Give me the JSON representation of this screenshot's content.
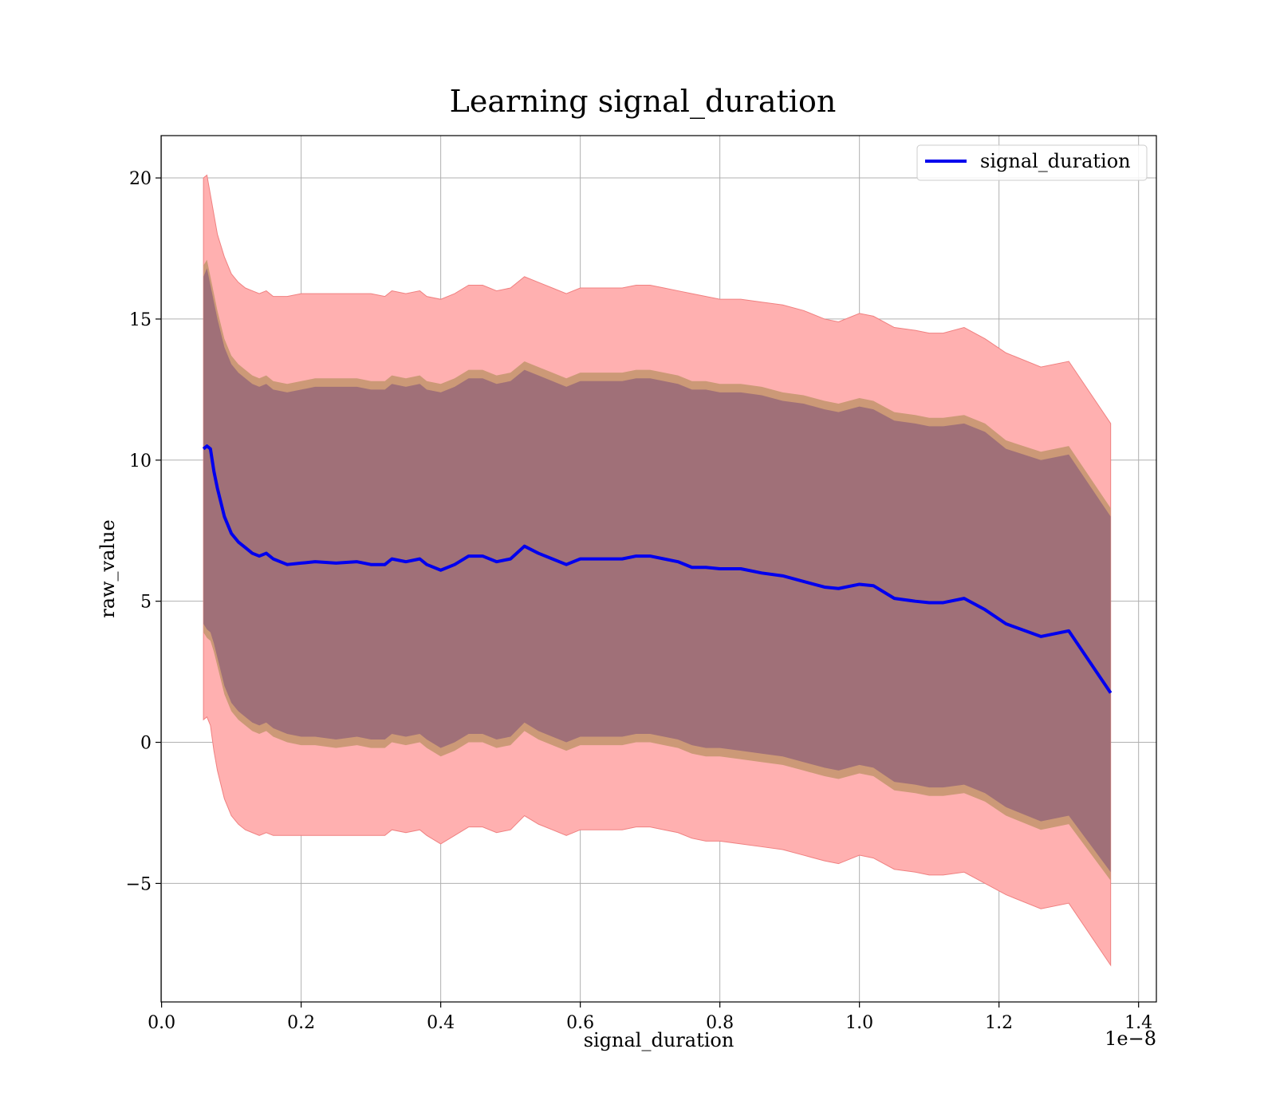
{
  "chart_data": {
    "type": "area",
    "title": "Learning signal_duration",
    "xlabel": "signal_duration",
    "ylabel": "raw_value",
    "x_offset_label": "1e−8",
    "x_scale": 1e-08,
    "xlim": [
      -0.0007,
      1.4255
    ],
    "ylim": [
      -9.2,
      21.5
    ],
    "x_ticks": [
      0.0,
      0.2,
      0.4,
      0.6,
      0.8,
      1.0,
      1.2,
      1.4
    ],
    "x_tick_labels": [
      "0.0",
      "0.2",
      "0.4",
      "0.6",
      "0.8",
      "1.0",
      "1.2",
      "1.4"
    ],
    "y_ticks": [
      -5,
      0,
      5,
      10,
      15,
      20
    ],
    "y_tick_labels": [
      "−5",
      "0",
      "5",
      "10",
      "15",
      "20"
    ],
    "grid": true,
    "legend_position": "top-right",
    "colors": {
      "line": "#0000ee",
      "outer_band": "#ffb0b0",
      "outer_band_edge": "#f08080",
      "mid_band": "#cc9977",
      "inner_band": "#a07078",
      "grid": "#b0b0b0"
    },
    "series": [
      {
        "name": "signal_duration",
        "x": [
          0.06,
          0.065,
          0.07,
          0.075,
          0.08,
          0.09,
          0.1,
          0.11,
          0.12,
          0.13,
          0.14,
          0.15,
          0.16,
          0.18,
          0.2,
          0.22,
          0.25,
          0.28,
          0.3,
          0.32,
          0.33,
          0.35,
          0.37,
          0.38,
          0.4,
          0.42,
          0.44,
          0.46,
          0.48,
          0.5,
          0.52,
          0.54,
          0.56,
          0.58,
          0.6,
          0.62,
          0.64,
          0.66,
          0.68,
          0.7,
          0.72,
          0.74,
          0.76,
          0.78,
          0.8,
          0.83,
          0.86,
          0.89,
          0.92,
          0.95,
          0.97,
          1.0,
          1.02,
          1.05,
          1.08,
          1.1,
          1.12,
          1.15,
          1.18,
          1.21,
          1.26,
          1.3,
          1.36
        ],
        "y": [
          10.4,
          10.5,
          10.4,
          9.6,
          9.0,
          8.0,
          7.4,
          7.1,
          6.9,
          6.7,
          6.6,
          6.7,
          6.5,
          6.3,
          6.35,
          6.4,
          6.35,
          6.4,
          6.3,
          6.3,
          6.5,
          6.4,
          6.5,
          6.3,
          6.1,
          6.3,
          6.6,
          6.6,
          6.4,
          6.5,
          6.95,
          6.7,
          6.5,
          6.3,
          6.5,
          6.5,
          6.5,
          6.5,
          6.6,
          6.6,
          6.5,
          6.4,
          6.2,
          6.2,
          6.15,
          6.15,
          6.0,
          5.9,
          5.7,
          5.5,
          5.45,
          5.6,
          5.55,
          5.1,
          5.0,
          4.95,
          4.95,
          5.1,
          4.7,
          4.2,
          3.75,
          3.95,
          1.75
        ],
        "inner_band_upper": [
          16.5,
          16.8,
          16.2,
          15.6,
          15.0,
          14.0,
          13.4,
          13.1,
          12.9,
          12.7,
          12.6,
          12.7,
          12.5,
          12.4,
          12.5,
          12.6,
          12.6,
          12.6,
          12.5,
          12.5,
          12.7,
          12.6,
          12.7,
          12.5,
          12.4,
          12.6,
          12.9,
          12.9,
          12.7,
          12.8,
          13.2,
          13.0,
          12.8,
          12.6,
          12.8,
          12.8,
          12.8,
          12.8,
          12.9,
          12.9,
          12.8,
          12.7,
          12.5,
          12.5,
          12.4,
          12.4,
          12.3,
          12.1,
          12.0,
          11.8,
          11.7,
          11.9,
          11.8,
          11.4,
          11.3,
          11.2,
          11.2,
          11.3,
          11.0,
          10.4,
          10.0,
          10.2,
          8.0
        ],
        "inner_band_lower": [
          4.2,
          4.0,
          3.9,
          3.5,
          3.0,
          2.0,
          1.4,
          1.1,
          0.9,
          0.7,
          0.6,
          0.7,
          0.5,
          0.3,
          0.2,
          0.2,
          0.1,
          0.2,
          0.1,
          0.1,
          0.3,
          0.2,
          0.3,
          0.1,
          -0.2,
          0.0,
          0.3,
          0.3,
          0.1,
          0.2,
          0.7,
          0.4,
          0.2,
          0.0,
          0.2,
          0.2,
          0.2,
          0.2,
          0.3,
          0.3,
          0.2,
          0.1,
          -0.1,
          -0.2,
          -0.2,
          -0.3,
          -0.4,
          -0.5,
          -0.7,
          -0.9,
          -1.0,
          -0.8,
          -0.9,
          -1.4,
          -1.5,
          -1.6,
          -1.6,
          -1.5,
          -1.8,
          -2.3,
          -2.8,
          -2.6,
          -4.6
        ],
        "mid_band_upper": [
          16.9,
          17.1,
          16.5,
          15.9,
          15.3,
          14.3,
          13.7,
          13.4,
          13.2,
          13.0,
          12.9,
          13.0,
          12.8,
          12.7,
          12.8,
          12.9,
          12.9,
          12.9,
          12.8,
          12.8,
          13.0,
          12.9,
          13.0,
          12.8,
          12.7,
          12.9,
          13.2,
          13.2,
          13.0,
          13.1,
          13.5,
          13.3,
          13.1,
          12.9,
          13.1,
          13.1,
          13.1,
          13.1,
          13.2,
          13.2,
          13.1,
          13.0,
          12.8,
          12.8,
          12.7,
          12.7,
          12.6,
          12.4,
          12.3,
          12.1,
          12.0,
          12.2,
          12.1,
          11.7,
          11.6,
          11.5,
          11.5,
          11.6,
          11.3,
          10.7,
          10.3,
          10.5,
          8.3
        ],
        "mid_band_lower": [
          3.9,
          3.7,
          3.6,
          3.2,
          2.7,
          1.7,
          1.1,
          0.8,
          0.6,
          0.4,
          0.3,
          0.4,
          0.2,
          0.0,
          -0.1,
          -0.1,
          -0.2,
          -0.1,
          -0.2,
          -0.2,
          0.0,
          -0.1,
          0.0,
          -0.2,
          -0.5,
          -0.3,
          0.0,
          0.0,
          -0.2,
          -0.1,
          0.4,
          0.1,
          -0.1,
          -0.3,
          -0.1,
          -0.1,
          -0.1,
          -0.1,
          0.0,
          0.0,
          -0.1,
          -0.2,
          -0.4,
          -0.5,
          -0.5,
          -0.6,
          -0.7,
          -0.8,
          -1.0,
          -1.2,
          -1.3,
          -1.1,
          -1.2,
          -1.7,
          -1.8,
          -1.9,
          -1.9,
          -1.8,
          -2.1,
          -2.6,
          -3.1,
          -2.9,
          -4.9
        ],
        "outer_band_upper": [
          20.0,
          20.1,
          19.4,
          18.7,
          18.0,
          17.2,
          16.6,
          16.3,
          16.1,
          16.0,
          15.9,
          16.0,
          15.8,
          15.8,
          15.9,
          15.9,
          15.9,
          15.9,
          15.9,
          15.8,
          16.0,
          15.9,
          16.0,
          15.8,
          15.7,
          15.9,
          16.2,
          16.2,
          16.0,
          16.1,
          16.5,
          16.3,
          16.1,
          15.9,
          16.1,
          16.1,
          16.1,
          16.1,
          16.2,
          16.2,
          16.1,
          16.0,
          15.9,
          15.8,
          15.7,
          15.7,
          15.6,
          15.5,
          15.3,
          15.0,
          14.9,
          15.2,
          15.1,
          14.7,
          14.6,
          14.5,
          14.5,
          14.7,
          14.3,
          13.8,
          13.3,
          13.5,
          11.3
        ],
        "outer_band_lower": [
          0.8,
          0.9,
          0.6,
          -0.3,
          -1.0,
          -2.0,
          -2.6,
          -2.9,
          -3.1,
          -3.2,
          -3.3,
          -3.2,
          -3.3,
          -3.3,
          -3.3,
          -3.3,
          -3.3,
          -3.3,
          -3.3,
          -3.3,
          -3.1,
          -3.2,
          -3.1,
          -3.3,
          -3.6,
          -3.3,
          -3.0,
          -3.0,
          -3.2,
          -3.1,
          -2.6,
          -2.9,
          -3.1,
          -3.3,
          -3.1,
          -3.1,
          -3.1,
          -3.1,
          -3.0,
          -3.0,
          -3.1,
          -3.2,
          -3.4,
          -3.5,
          -3.5,
          -3.6,
          -3.7,
          -3.8,
          -4.0,
          -4.2,
          -4.3,
          -4.0,
          -4.1,
          -4.5,
          -4.6,
          -4.7,
          -4.7,
          -4.6,
          -5.0,
          -5.4,
          -5.9,
          -5.7,
          -7.9
        ]
      }
    ]
  }
}
